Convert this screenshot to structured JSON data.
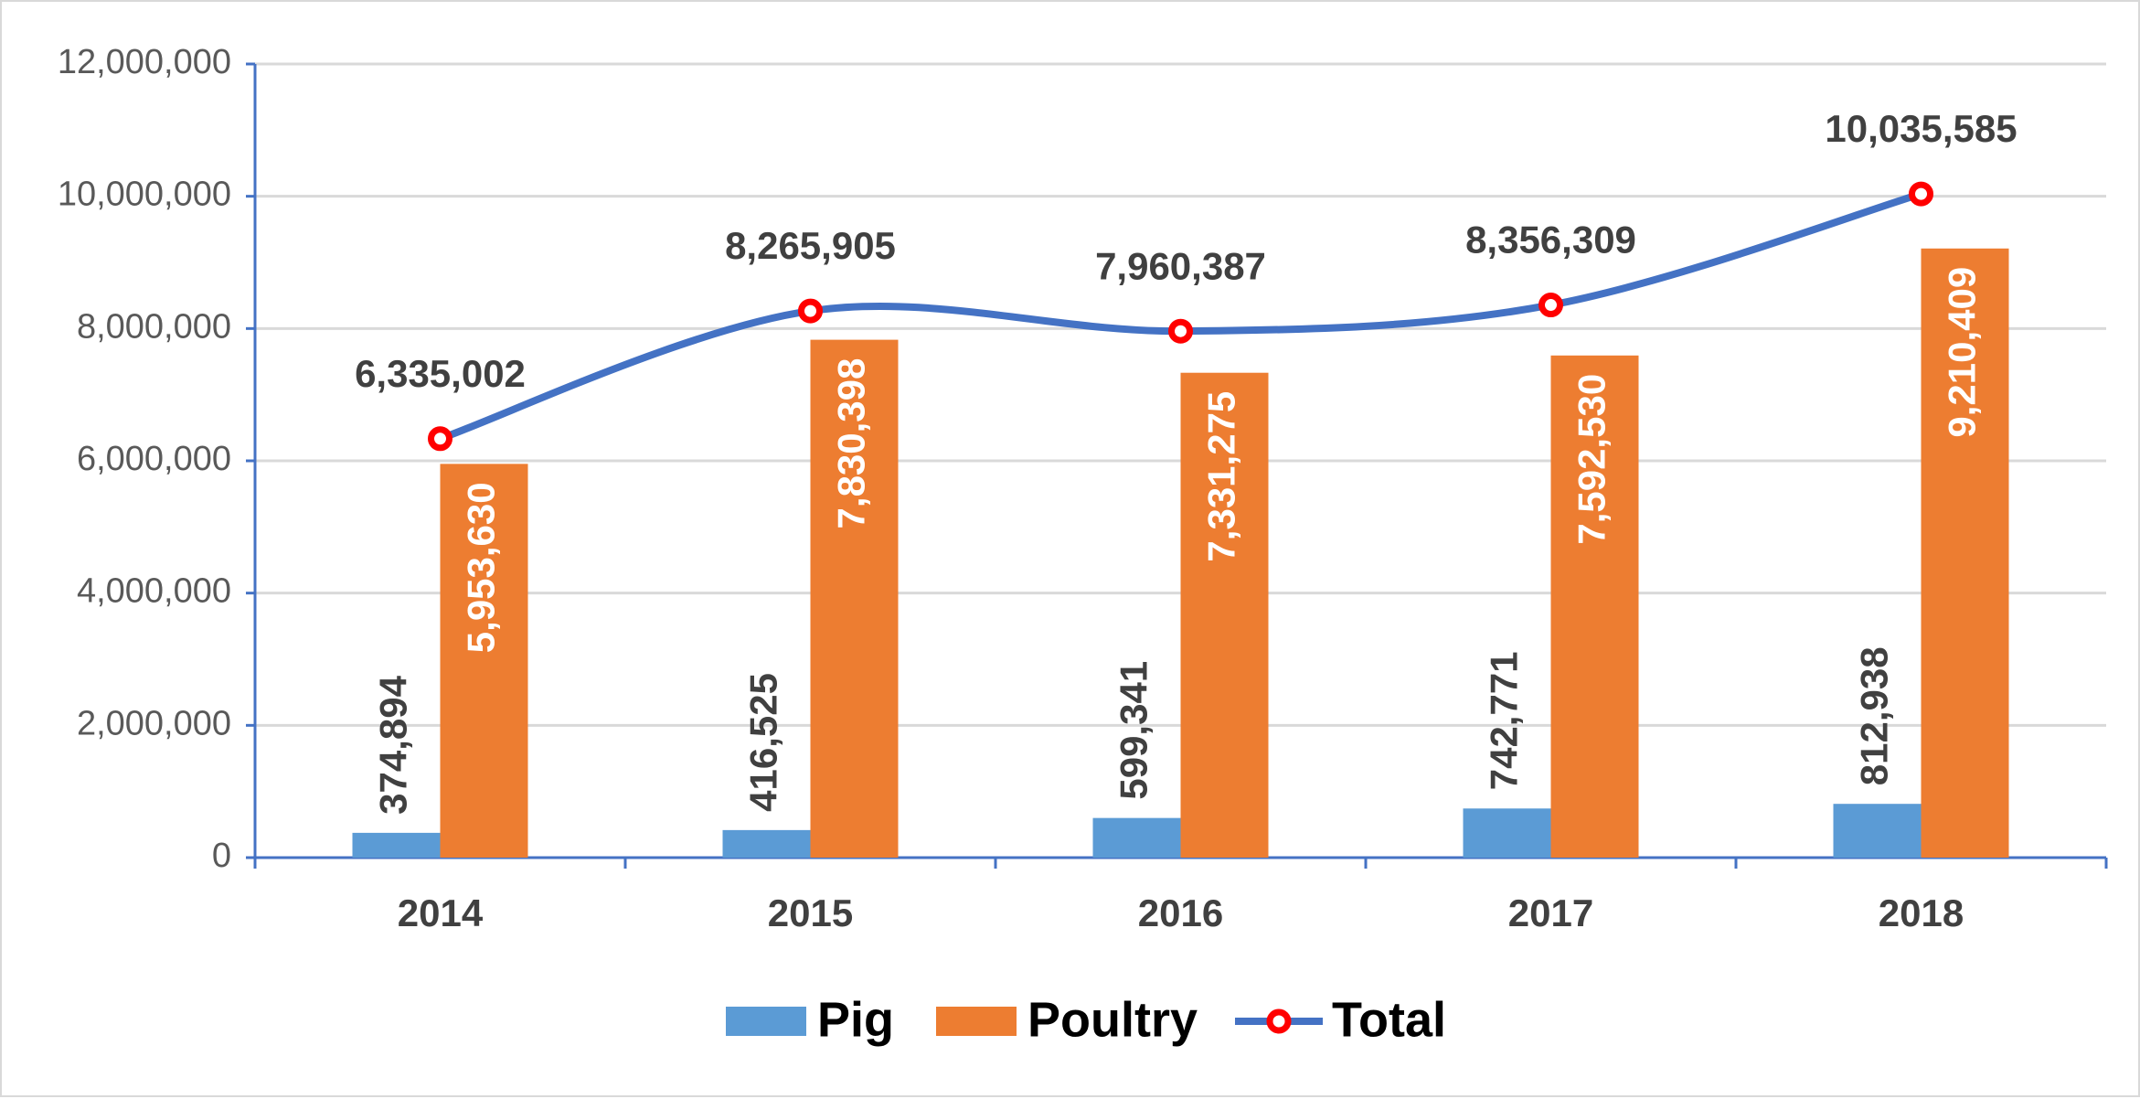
{
  "chart_data": {
    "type": "bar",
    "categories": [
      "2014",
      "2015",
      "2016",
      "2017",
      "2018"
    ],
    "series": [
      {
        "name": "Pig",
        "color": "#5b9bd5",
        "values": [
          374894,
          416525,
          599341,
          742771,
          812938
        ],
        "value_labels": [
          "374,894",
          "416,525",
          "599,341",
          "742,771",
          "812,938"
        ]
      },
      {
        "name": "Poultry",
        "color": "#ed7d31",
        "values": [
          5953630,
          7830398,
          7331275,
          7592530,
          9210409
        ],
        "value_labels": [
          "5,953,630",
          "7,830,398",
          "7,331,275",
          "7,592,530",
          "9,210,409"
        ]
      },
      {
        "name": "Total",
        "type": "line",
        "color": "#4472c4",
        "marker_color": "#ff0000",
        "values": [
          6335002,
          8265905,
          7960387,
          8356309,
          10035585
        ],
        "value_labels": [
          "6,335,002",
          "8,265,905",
          "7,960,387",
          "8,356,309",
          "10,035,585"
        ]
      }
    ],
    "ylim": [
      0,
      12000000
    ],
    "yticks": [
      0,
      {
        "value": 2000000,
        "label": "2,000,000"
      },
      {
        "value": 4000000,
        "label": "4,000,000"
      },
      {
        "value": 6000000,
        "label": "6,000,000"
      },
      {
        "value": 8000000,
        "label": "8,000,000"
      },
      {
        "value": 10000000,
        "label": "10,000,000"
      },
      {
        "value": 12000000,
        "label": "12,000,000"
      }
    ],
    "grid": true,
    "legend": "bottom"
  }
}
